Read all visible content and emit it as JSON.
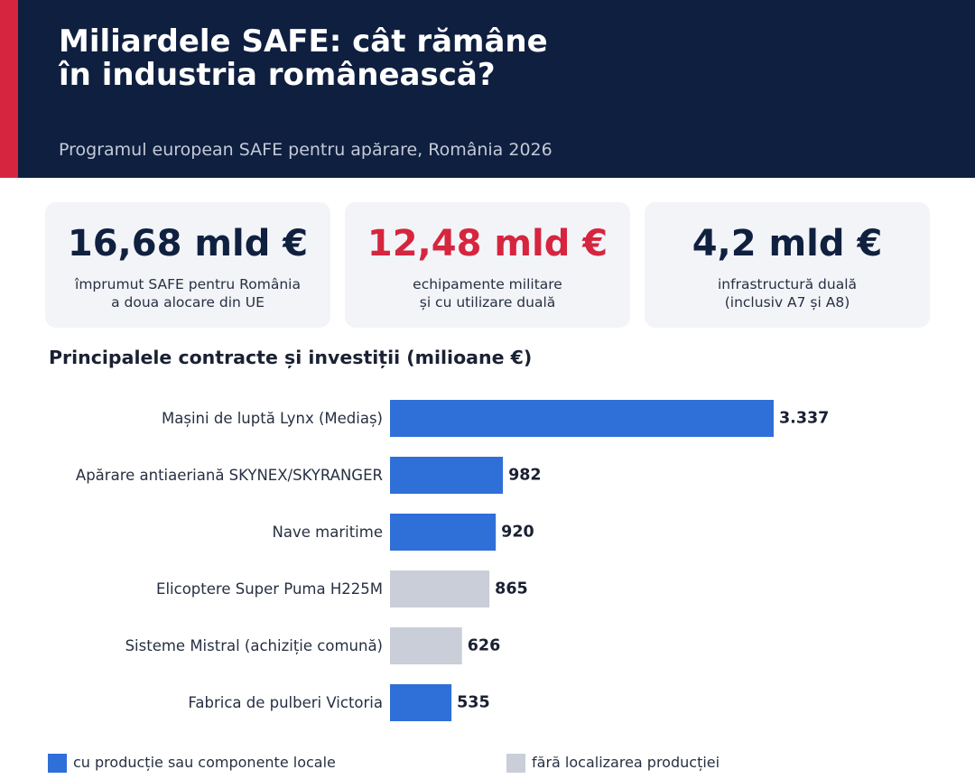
{
  "header": {
    "title_lines": [
      "Miliardele SAFE: cât rămâne",
      "în industria românească?"
    ],
    "subtitle": "Programul european SAFE pentru apărare, România 2026"
  },
  "kpis": [
    {
      "value": "16,68 mld €",
      "desc": [
        "împrumut SAFE pentru România",
        "a doua alocare din UE"
      ]
    },
    {
      "value": "12,48 mld €",
      "desc": [
        "echipamente militare",
        "și cu utilizare duală"
      ]
    },
    {
      "value": "4,2 mld €",
      "desc": [
        "infrastructură duală",
        "(inclusiv A7 și A8)"
      ]
    }
  ],
  "section_title": "Principalele contracte și investiții (milioane €)",
  "colors": {
    "header_bg": "#0f1f3f",
    "accent_red": "#d6253f",
    "local_blue": "#2f6fd8",
    "nonlocal_gray": "#c9ced8"
  },
  "chart_data": {
    "type": "bar",
    "orientation": "horizontal",
    "categories": [
      "Mașini de luptă Lynx (Mediaș)",
      "Apărare antiaeriană SKYNEX/SKYRANGER",
      "Nave maritime",
      "Elicoptere Super Puma H225M",
      "Sisteme Mistral (achiziție comună)",
      "Fabrica de pulberi Victoria"
    ],
    "values": [
      3337,
      982,
      920,
      865,
      626,
      535
    ],
    "value_labels": [
      "3.337",
      "982",
      "920",
      "865",
      "626",
      "535"
    ],
    "localized": [
      true,
      true,
      true,
      false,
      false,
      true
    ],
    "grid": false,
    "legend": [
      {
        "label": "cu producție sau componente locale",
        "color": "#2f6fd8"
      },
      {
        "label": "fără localizarea producției",
        "color": "#c9ced8"
      }
    ],
    "legend_position": "bottom"
  }
}
